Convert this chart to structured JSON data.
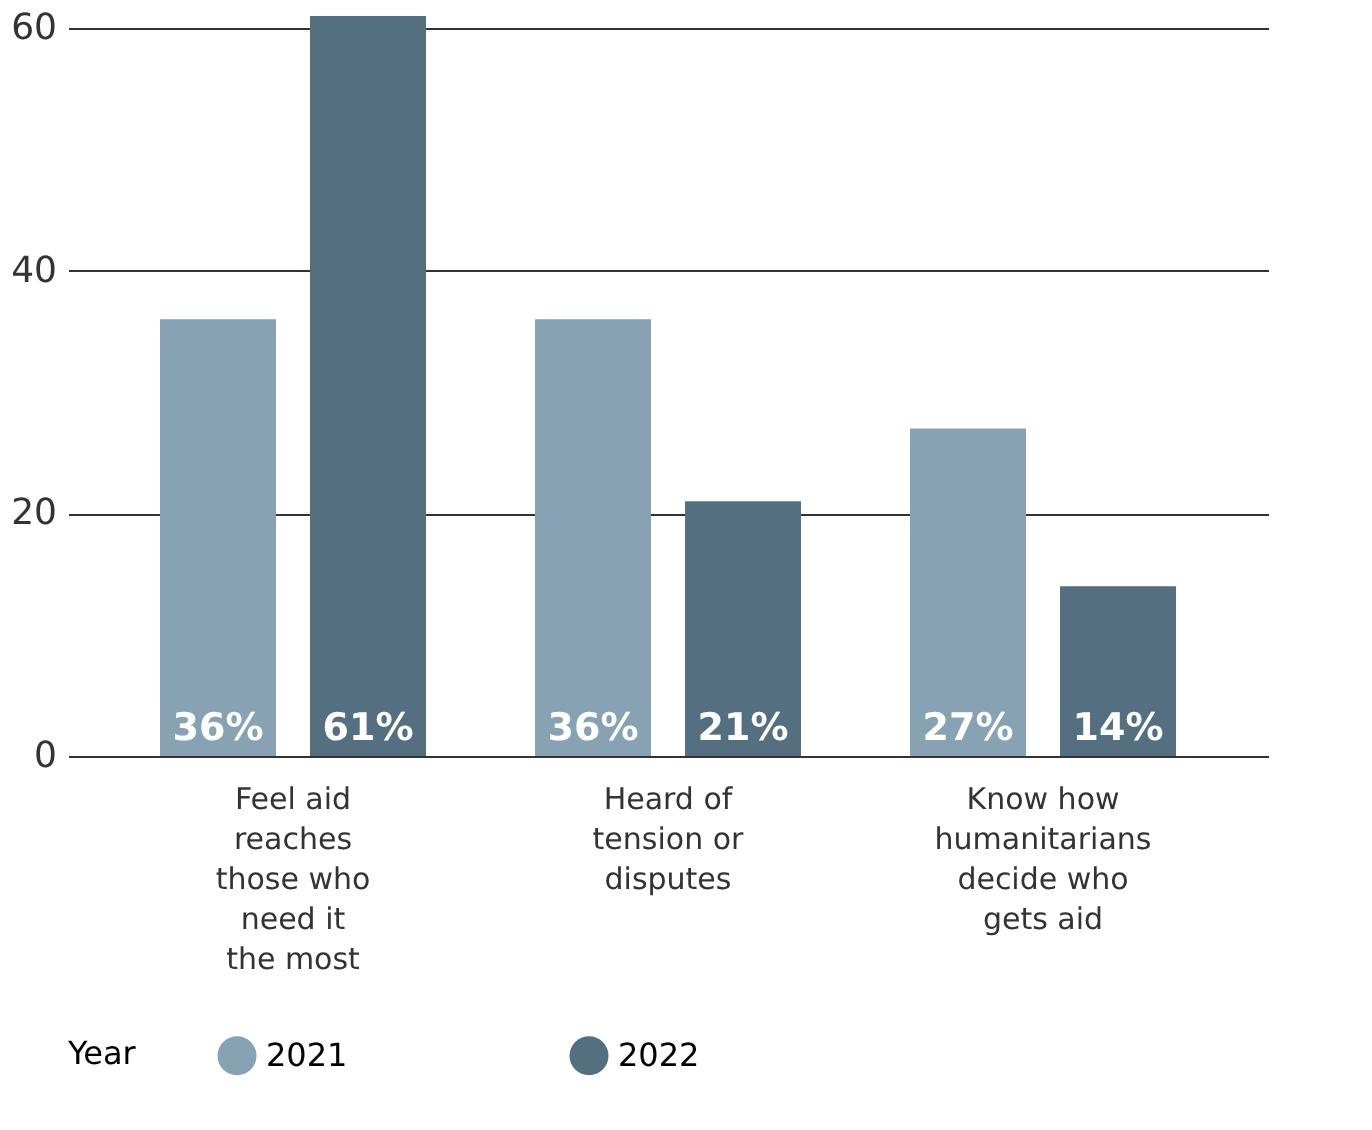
{
  "chart_data": {
    "type": "bar",
    "categories": [
      "Feel aid reaches those who need it the most",
      "Heard of tension or disputes",
      "Know how humanitarians decide who gets aid"
    ],
    "series": [
      {
        "name": "2021",
        "color": "#87a2b2",
        "values": [
          36,
          36,
          27
        ],
        "value_labels": [
          "36%",
          "36%",
          "27%"
        ]
      },
      {
        "name": "2022",
        "color": "#546f80",
        "values": [
          61,
          21,
          14
        ],
        "value_labels": [
          "61%",
          "21%",
          "14%"
        ]
      }
    ],
    "legend_title": "Year",
    "legend": "bottom",
    "ylim": [
      0,
      61
    ],
    "yticks": [
      0,
      20,
      40,
      60
    ],
    "grid": "y",
    "marker": "circle"
  }
}
